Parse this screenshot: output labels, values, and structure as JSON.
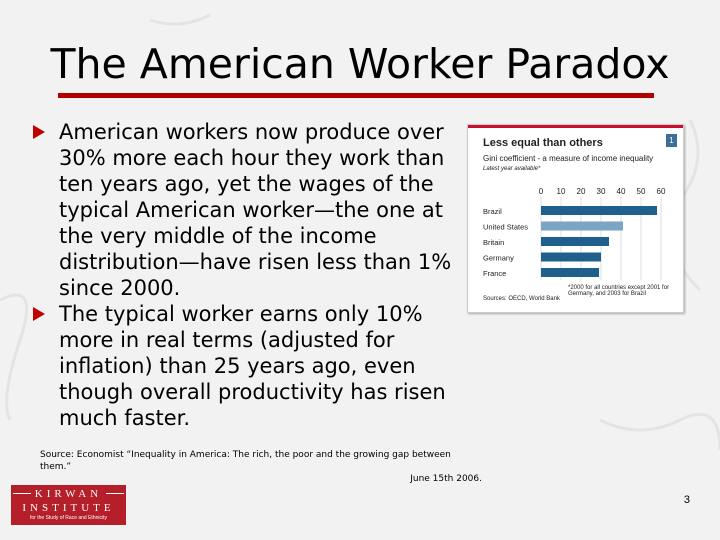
{
  "slide": {
    "title": "The American Worker Paradox",
    "accent_color": "#b00000",
    "bullets": [
      "American workers now produce over 30% more each hour they work than ten years ago, yet the wages of the typical American worker—the one at the very middle of the income distribution—have risen less than 1% since 2000.",
      "The typical worker earns only 10% more in real terms (adjusted for inflation) than 25 years ago, even though overall productivity has risen much faster."
    ],
    "source_line1": "Source: Economist “Inequality in America: The rich, the poor and the growing gap between them.”",
    "source_line2": "June 15th 2006.",
    "page_number": "3",
    "logo": {
      "line1": "KIRWAN",
      "line2": "INSTITUTE",
      "line3": "for the Study of Race and Ethnicity"
    }
  },
  "chart_data": {
    "type": "bar",
    "orientation": "horizontal",
    "title": "Less equal than others",
    "badge": "1",
    "subtitle": "Gini coefficient - a measure of income inequality",
    "subtitle2": "Latest year available*",
    "categories": [
      "Brazil",
      "United States",
      "Britain",
      "Germany",
      "France"
    ],
    "values": [
      58,
      41,
      34,
      30,
      29
    ],
    "bar_colors": [
      "#1f5f8b",
      "#7aa6c4",
      "#1f5f8b",
      "#1f5f8b",
      "#1f5f8b"
    ],
    "x_ticks": [
      "0",
      "10",
      "20",
      "30",
      "40",
      "50",
      "60"
    ],
    "xlim": [
      0,
      60
    ],
    "note": "*2000 for all countries except 2001 for Germany, and 2003 for Brazil",
    "source": "Sources: OECD, World Bank"
  }
}
